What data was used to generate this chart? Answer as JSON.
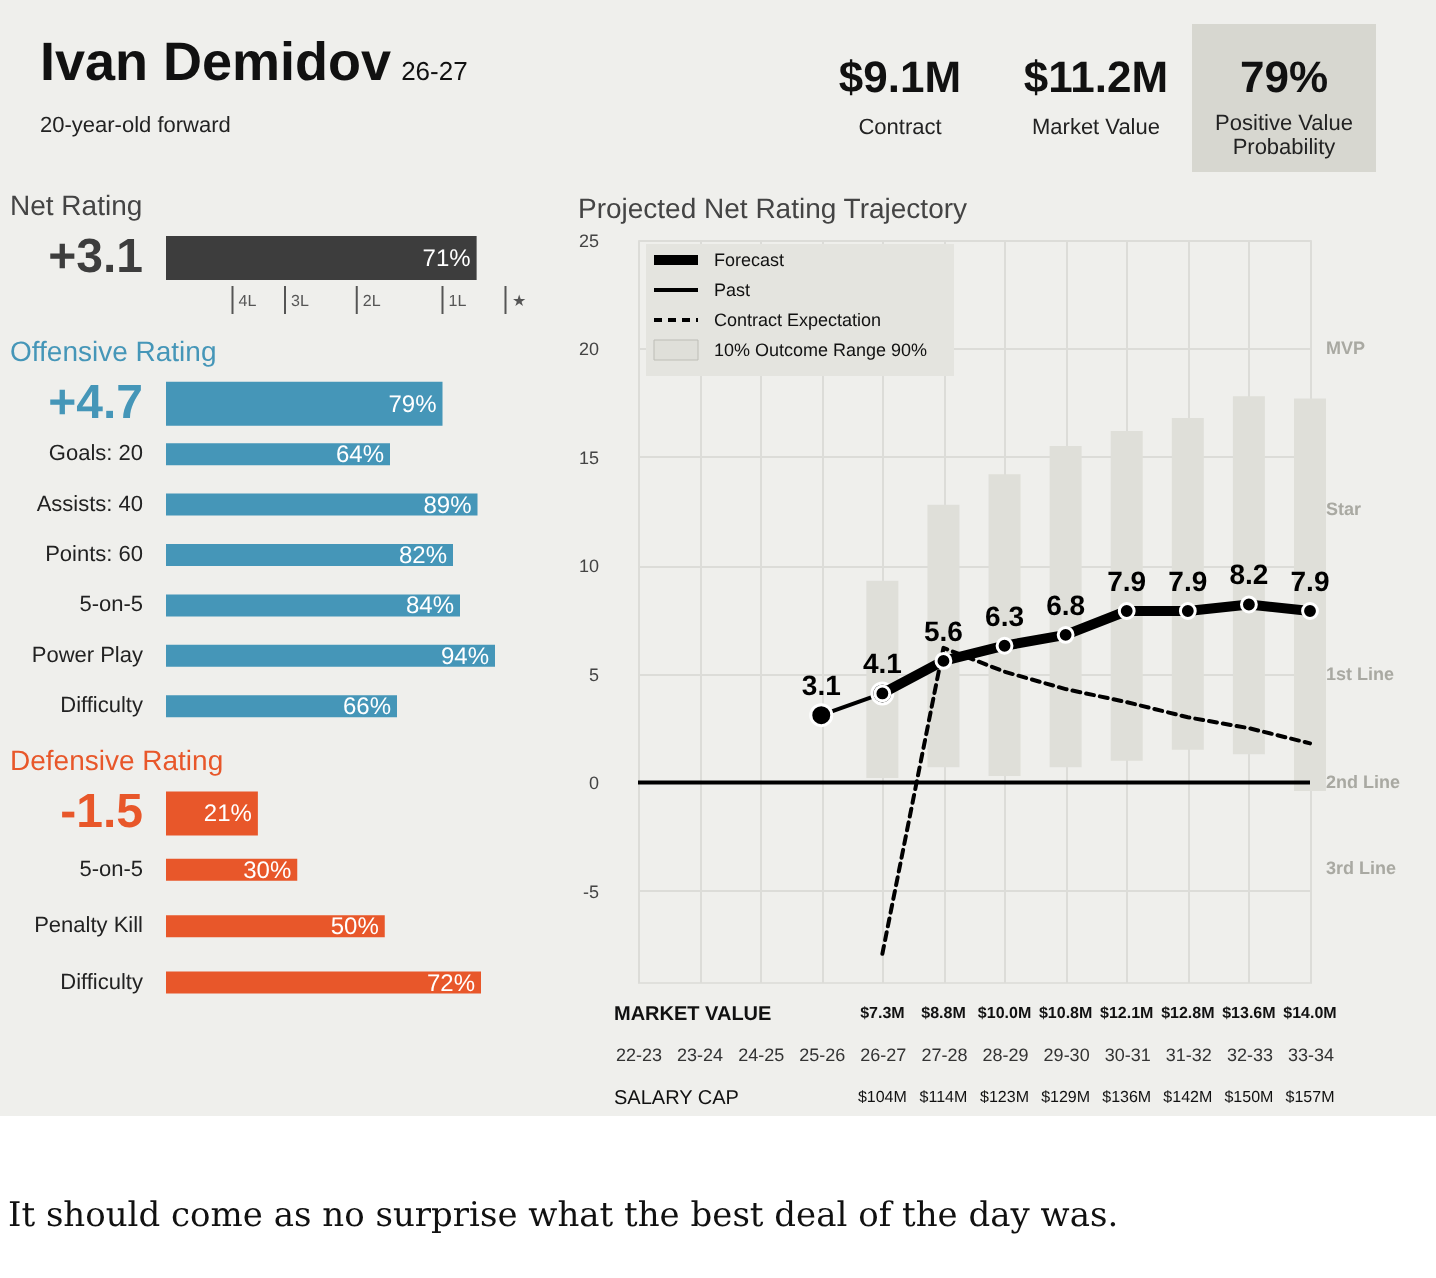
{
  "chart_data": [
    {
      "type": "other",
      "title": "Ivan Demidov",
      "subtitle": "20-year-old forward",
      "annotations": [
        "26-27",
        "$9.1M",
        "Contract",
        "$11.2M",
        "Market Value",
        "79%",
        "Positive Value Probability",
        "It should come as no surprise what the best deal of the day was."
      ]
    },
    {
      "type": "bar",
      "orientation": "horizontal",
      "title": "Net Rating",
      "categories": [
        "+3.1"
      ],
      "values": [
        71
      ],
      "value_labels": [
        "71%"
      ],
      "color": "#3d3d3d",
      "tick_labels": "y",
      "annotations": [
        "4L",
        "3L",
        "2L",
        "1L",
        "★"
      ]
    },
    {
      "type": "bar",
      "orientation": "horizontal",
      "title": "Offensive Rating",
      "categories": [
        "+4.7",
        "Goals: 20",
        "Assists: 40",
        "Points: 60",
        "5-on-5",
        "Power Play",
        "Difficulty"
      ],
      "values": [
        79,
        64,
        89,
        82,
        84,
        94,
        66
      ],
      "value_labels": [
        "79%",
        "64%",
        "89%",
        "82%",
        "84%",
        "94%",
        "66%"
      ],
      "color": "#4596b8",
      "tick_labels": "y"
    },
    {
      "type": "bar",
      "orientation": "horizontal",
      "title": "Defensive Rating",
      "categories": [
        "-1.5",
        "5-on-5",
        "Penalty Kill",
        "Difficulty"
      ],
      "values": [
        21,
        30,
        50,
        72
      ],
      "value_labels": [
        "21%",
        "30%",
        "50%",
        "72%"
      ],
      "color": "#e8572a",
      "tick_labels": "y"
    },
    {
      "type": "line",
      "title": "Projected Net Rating Trajectory",
      "categories": [
        "22-23",
        "23-24",
        "24-25",
        "25-26",
        "26-27",
        "27-28",
        "28-29",
        "29-30",
        "30-31",
        "31-32",
        "32-33",
        "33-34"
      ],
      "ylim": [
        -9.2,
        25
      ],
      "yticks": [
        -5,
        0,
        5,
        10,
        15,
        20,
        25
      ],
      "grid": true,
      "legend": "top left",
      "ref_lines": [
        {
          "axis": "y",
          "value": 0,
          "color": "#000000"
        }
      ],
      "series": [
        {
          "name": "Forecast",
          "type": "line",
          "color": "#000000",
          "marker": "circle",
          "values": [
            null,
            null,
            null,
            null,
            4.1,
            5.6,
            6.3,
            6.8,
            7.9,
            7.9,
            8.2,
            7.9
          ],
          "value_labels": [
            null,
            null,
            null,
            null,
            "4.1",
            "5.6",
            "6.3",
            "6.8",
            "7.9",
            "7.9",
            "8.2",
            "7.9"
          ]
        },
        {
          "name": "Past",
          "type": "line",
          "color": "#000000",
          "marker": "circle",
          "values": [
            null,
            null,
            null,
            3.1,
            4.1,
            null,
            null,
            null,
            null,
            null,
            null,
            null
          ],
          "value_labels": [
            null,
            null,
            null,
            "3.1",
            null,
            null,
            null,
            null,
            null,
            null,
            null,
            null
          ]
        },
        {
          "name": "Contract Expectation",
          "type": "line",
          "color": "#000000",
          "line_style": "dashed",
          "values": [
            null,
            null,
            null,
            null,
            -7.9,
            6.2,
            5.1,
            4.3,
            3.7,
            3.0,
            2.5,
            1.8
          ]
        },
        {
          "name": "10% Outcome Range 90%",
          "type": "bar",
          "color": "#dfdfd9",
          "base": [
            null,
            null,
            null,
            null,
            0.2,
            0.7,
            0.3,
            0.7,
            1.0,
            1.5,
            1.3,
            -0.4
          ],
          "values": [
            null,
            null,
            null,
            null,
            9.1,
            12.1,
            13.9,
            14.8,
            15.2,
            15.3,
            16.5,
            18.1
          ]
        }
      ],
      "annotations": [
        "MVP",
        "Star",
        "1st Line",
        "2nd Line",
        "3rd Line",
        "MARKET VALUE",
        "$7.3M",
        "$8.8M",
        "$10.0M",
        "$10.8M",
        "$12.1M",
        "$12.8M",
        "$13.6M",
        "$14.0M",
        "SALARY CAP",
        "$104M",
        "$114M",
        "$123M",
        "$129M",
        "$136M",
        "$142M",
        "$150M",
        "$157M"
      ]
    }
  ]
}
